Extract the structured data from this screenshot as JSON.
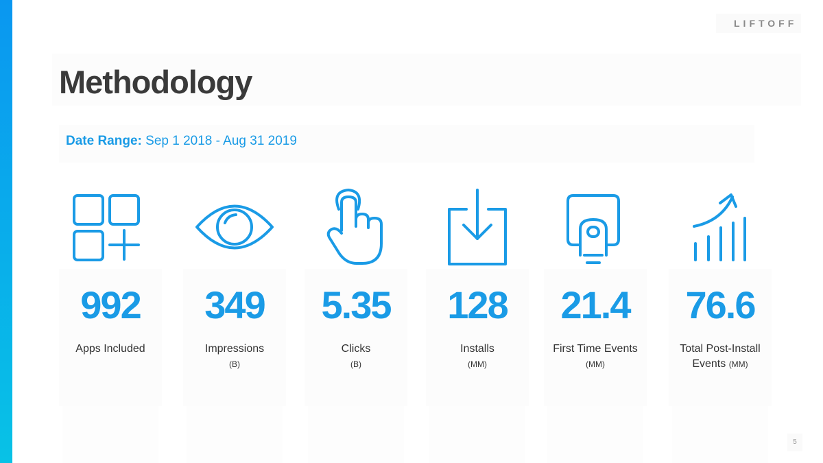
{
  "logo": "LIFTOFF",
  "title": "Methodology",
  "date_range": {
    "label": "Date Range:",
    "value": "Sep 1 2018 - Aug 31 2019"
  },
  "stats": [
    {
      "value": "992",
      "label": "Apps Included"
    },
    {
      "value": "349",
      "label": "Impressions",
      "unit": "(B)"
    },
    {
      "value": "5.35",
      "label": "Clicks",
      "unit": "(B)"
    },
    {
      "value": "128",
      "label": "Installs",
      "unit": "(MM)"
    },
    {
      "value": "21.4",
      "label": "First Time Events",
      "unit": "(MM)"
    },
    {
      "value": "76.6",
      "label": "Total Post-Install Events",
      "unit": "(MM)"
    }
  ],
  "page_number": "5"
}
